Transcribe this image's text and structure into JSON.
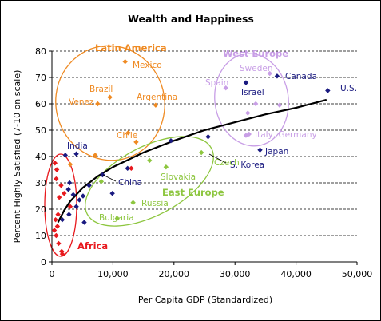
{
  "chart_data": {
    "type": "scatter",
    "title": "Wealth and Happiness",
    "xlabel": "Per Capita GDP (Standardized)",
    "ylabel": "Percent Highly Satisfied (7-10 on scale)",
    "xlim": [
      0,
      50000
    ],
    "ylim": [
      0,
      80
    ],
    "x_ticks": [
      0,
      10000,
      20000,
      30000,
      40000,
      50000
    ],
    "x_tick_labels": [
      "0",
      "10,000",
      "20,000",
      "30,000",
      "40,000",
      "50,000"
    ],
    "y_ticks": [
      0,
      10,
      20,
      30,
      40,
      50,
      60,
      70,
      80
    ],
    "y_tick_labels": [
      "0",
      "10",
      "20",
      "30",
      "40",
      "50",
      "60",
      "70",
      "80"
    ],
    "grid": "horizontal dashed",
    "colors": {
      "navy": "#1a1a80",
      "red": "#e8191e",
      "orange": "#ef8a22",
      "green": "#8dc63f",
      "violet": "#c89ee6",
      "trend": "#000000"
    },
    "points": [
      {
        "x": 500,
        "y": 37.5,
        "group": "red"
      },
      {
        "x": 800,
        "y": 35,
        "group": "red"
      },
      {
        "x": 700,
        "y": 31.5,
        "group": "red"
      },
      {
        "x": 1500,
        "y": 29,
        "group": "red"
      },
      {
        "x": 2000,
        "y": 26,
        "group": "red"
      },
      {
        "x": 3000,
        "y": 21,
        "group": "red"
      },
      {
        "x": 1200,
        "y": 24.5,
        "group": "red"
      },
      {
        "x": 1000,
        "y": 18,
        "group": "red"
      },
      {
        "x": 600,
        "y": 16,
        "group": "red"
      },
      {
        "x": 900,
        "y": 13.5,
        "group": "red"
      },
      {
        "x": 400,
        "y": 12,
        "group": "red"
      },
      {
        "x": 700,
        "y": 10,
        "group": "red"
      },
      {
        "x": 1100,
        "y": 7,
        "group": "red"
      },
      {
        "x": 1600,
        "y": 4,
        "group": "red"
      },
      {
        "x": 1700,
        "y": 3,
        "group": "red"
      },
      {
        "x": 13000,
        "y": 35.5,
        "group": "red"
      },
      {
        "x": 2200,
        "y": 40.5,
        "group": "navy"
      },
      {
        "x": 2900,
        "y": 30,
        "group": "navy"
      },
      {
        "x": 3500,
        "y": 25.5,
        "group": "navy"
      },
      {
        "x": 2700,
        "y": 27.5,
        "group": "navy"
      },
      {
        "x": 4000,
        "y": 21,
        "group": "navy"
      },
      {
        "x": 1700,
        "y": 16,
        "group": "navy"
      },
      {
        "x": 4500,
        "y": 23.5,
        "group": "navy"
      },
      {
        "x": 5100,
        "y": 25,
        "group": "navy"
      },
      {
        "x": 6100,
        "y": 29,
        "group": "navy"
      },
      {
        "x": 2800,
        "y": 18,
        "group": "navy"
      },
      {
        "x": 5300,
        "y": 15,
        "group": "navy"
      },
      {
        "x": 4000,
        "y": 41,
        "group": "navy"
      },
      {
        "x": 8300,
        "y": 33,
        "group": "navy"
      },
      {
        "x": 9900,
        "y": 26,
        "group": "navy"
      },
      {
        "x": 12400,
        "y": 35.5,
        "group": "navy"
      },
      {
        "x": 19500,
        "y": 46,
        "group": "navy"
      },
      {
        "x": 25600,
        "y": 47.5,
        "group": "navy"
      },
      {
        "x": 31800,
        "y": 68,
        "group": "navy"
      },
      {
        "x": 34100,
        "y": 42.5,
        "group": "navy"
      },
      {
        "x": 36900,
        "y": 70.5,
        "group": "navy"
      },
      {
        "x": 45200,
        "y": 65,
        "group": "navy"
      },
      {
        "x": 12000,
        "y": 76,
        "group": "orange"
      },
      {
        "x": 9500,
        "y": 62.5,
        "group": "orange"
      },
      {
        "x": 7500,
        "y": 60,
        "group": "orange"
      },
      {
        "x": 17000,
        "y": 59.5,
        "group": "orange"
      },
      {
        "x": 12500,
        "y": 49,
        "group": "orange"
      },
      {
        "x": 13800,
        "y": 45.5,
        "group": "orange"
      },
      {
        "x": 7100,
        "y": 40.5,
        "group": "orange"
      },
      {
        "x": 3000,
        "y": 37,
        "group": "orange"
      },
      {
        "x": 16000,
        "y": 38.5,
        "group": "green"
      },
      {
        "x": 18700,
        "y": 36,
        "group": "green"
      },
      {
        "x": 24500,
        "y": 41.5,
        "group": "green"
      },
      {
        "x": 8100,
        "y": 30.5,
        "group": "green"
      },
      {
        "x": 13300,
        "y": 22.5,
        "group": "green"
      },
      {
        "x": 10700,
        "y": 16.5,
        "group": "green"
      },
      {
        "x": 28500,
        "y": 66,
        "group": "violet"
      },
      {
        "x": 32100,
        "y": 56.5,
        "group": "violet"
      },
      {
        "x": 33400,
        "y": 60,
        "group": "violet"
      },
      {
        "x": 35700,
        "y": 71.5,
        "group": "violet"
      },
      {
        "x": 37300,
        "y": 59.5,
        "group": "violet"
      },
      {
        "x": 31800,
        "y": 48,
        "group": "violet"
      },
      {
        "x": 32300,
        "y": 48.5,
        "group": "violet"
      }
    ],
    "trendline": [
      [
        1000,
        15
      ],
      [
        2000,
        19.5
      ],
      [
        3000,
        23
      ],
      [
        5000,
        28
      ],
      [
        7500,
        32.5
      ],
      [
        10000,
        36
      ],
      [
        15000,
        41.5
      ],
      [
        20000,
        46
      ],
      [
        25000,
        50
      ],
      [
        30000,
        53
      ],
      [
        35000,
        56
      ],
      [
        40000,
        58.5
      ],
      [
        45000,
        61.5
      ]
    ],
    "point_labels": [
      {
        "text": "Mexico",
        "group": "orange"
      },
      {
        "text": "Brazil",
        "group": "orange"
      },
      {
        "text": "Venez",
        "group": "orange"
      },
      {
        "text": "Argentina",
        "group": "orange"
      },
      {
        "text": "Chile",
        "group": "orange"
      },
      {
        "text": "India",
        "group": "navy"
      },
      {
        "text": "China",
        "group": "navy"
      },
      {
        "text": "Israel",
        "group": "navy"
      },
      {
        "text": "Canada",
        "group": "navy"
      },
      {
        "text": "U.S.",
        "group": "navy"
      },
      {
        "text": "Japan",
        "group": "navy"
      },
      {
        "text": "S. Korea",
        "group": "navy"
      },
      {
        "text": "Spain",
        "group": "violet"
      },
      {
        "text": "Sweden",
        "group": "violet"
      },
      {
        "text": "Italy, Germany",
        "group": "violet"
      },
      {
        "text": "Czech",
        "group": "green"
      },
      {
        "text": "Slovakia",
        "group": "green"
      },
      {
        "text": "Russia",
        "group": "green"
      },
      {
        "text": "Bulgaria",
        "group": "green"
      }
    ],
    "regions": [
      {
        "text": "Latin America",
        "group": "orange"
      },
      {
        "text": "West Europe",
        "group": "violet"
      },
      {
        "text": "East Europe",
        "group": "green"
      },
      {
        "text": "Africa",
        "group": "red"
      }
    ]
  }
}
